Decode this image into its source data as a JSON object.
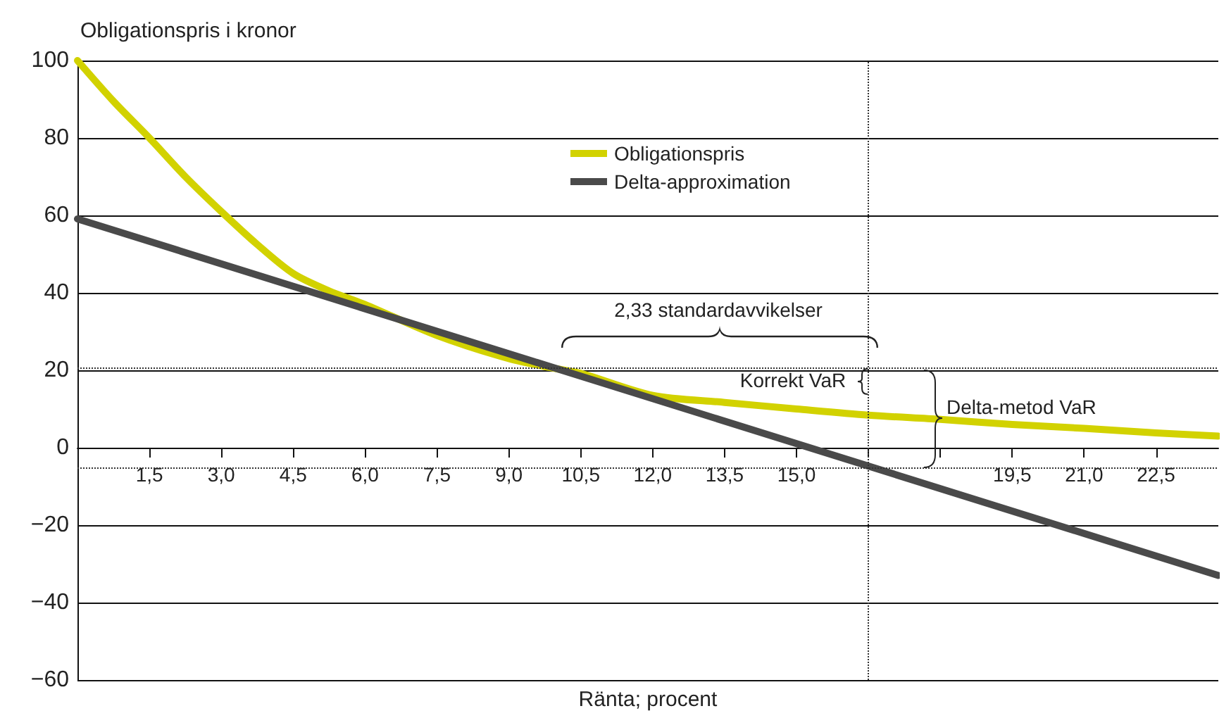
{
  "chart_data": {
    "type": "line",
    "ylabel": "Obligationspris i kronor",
    "xlabel": "Ränta; procent",
    "xlim": [
      0,
      23.8
    ],
    "ylim": [
      -60,
      100
    ],
    "xticks": [
      {
        "value": 1.5,
        "label": "1,5"
      },
      {
        "value": 3.0,
        "label": "3,0"
      },
      {
        "value": 4.5,
        "label": "4,5"
      },
      {
        "value": 6.0,
        "label": "6,0"
      },
      {
        "value": 7.5,
        "label": "7,5"
      },
      {
        "value": 9.0,
        "label": "9,0"
      },
      {
        "value": 10.5,
        "label": "10,5"
      },
      {
        "value": 12.0,
        "label": "12,0"
      },
      {
        "value": 13.5,
        "label": "13,5"
      },
      {
        "value": 15.0,
        "label": "15,0"
      },
      {
        "value": 16.5,
        "label": null
      },
      {
        "value": 18.0,
        "label": null
      },
      {
        "value": 19.5,
        "label": "19,5"
      },
      {
        "value": 21.0,
        "label": "21,0"
      },
      {
        "value": 22.5,
        "label": "22,5"
      }
    ],
    "yticks": [
      -60,
      -40,
      -20,
      0,
      20,
      40,
      60,
      80,
      100
    ],
    "grid": "y",
    "legend": "top",
    "marker": "none",
    "line_style": "solid",
    "series": [
      {
        "name": "Obligationspris",
        "color": "#d2d200",
        "x": [
          0,
          0.75,
          1.5,
          2.25,
          3,
          3.75,
          4.5,
          5.25,
          6,
          7.5,
          9,
          9.9,
          10.5,
          12,
          13.5,
          15,
          16.5,
          18,
          19.5,
          21,
          22.5,
          23.8
        ],
        "values": [
          100,
          89.5,
          80,
          70,
          61,
          52.5,
          45,
          40.5,
          37,
          29,
          23,
          20.6,
          19.2,
          13.5,
          11.7,
          10,
          8.4,
          7.3,
          6,
          5,
          3.8,
          3
        ]
      },
      {
        "name": "Delta-approximation",
        "color": "#4a4a4a",
        "x": [
          0,
          23.8
        ],
        "values": [
          59.1,
          -33
        ]
      }
    ],
    "ref_lines": [
      {
        "axis": "y",
        "value": 20.6,
        "line_style": "dotted",
        "color": "#333333"
      },
      {
        "axis": "y",
        "value": -5.2,
        "line_style": "dotted",
        "color": "#333333"
      },
      {
        "axis": "x",
        "value": 16.5,
        "line_style": "dotted",
        "color": "#333333"
      }
    ],
    "annotations": [
      "2,33 standardavvikelser",
      "Korrekt VaR",
      "Delta-metod VaR"
    ]
  }
}
